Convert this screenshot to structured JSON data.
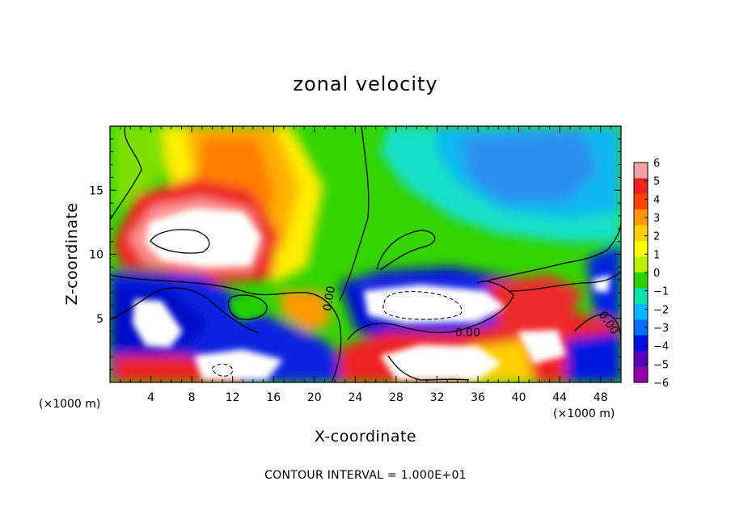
{
  "chart_data": {
    "type": "heatmap",
    "title": "zonal velocity",
    "xlabel": "X-coordinate",
    "ylabel": "Z-coordinate",
    "x_unit": "(×1000 m)",
    "x_unit_right": "(×1000 m)",
    "xlim": [
      0,
      50
    ],
    "ylim": [
      0,
      20
    ],
    "x_ticks": [
      4,
      8,
      12,
      16,
      20,
      24,
      28,
      32,
      36,
      40,
      44,
      48
    ],
    "y_ticks": [
      5,
      10,
      15
    ],
    "colorbar": {
      "min": -6,
      "max": 6,
      "ticks": [
        6,
        5,
        4,
        3,
        2,
        1,
        0,
        -1,
        -2,
        -3,
        -4,
        -5,
        -6
      ],
      "colors": [
        "#f3a0a0",
        "#ee2222",
        "#ff4500",
        "#ff9900",
        "#ffd000",
        "#ffff00",
        "#b8f000",
        "#2cd000",
        "#10e0b0",
        "#00b8ff",
        "#0070ff",
        "#0010e0",
        "#5500bb",
        "#9000a8"
      ]
    },
    "contour_labels": [
      {
        "text": "0.00",
        "x": 21.8,
        "y": 6.5,
        "rotate": -80
      },
      {
        "text": "0.00",
        "x": 35.0,
        "y": 3.6,
        "rotate": 0
      },
      {
        "text": "0.00",
        "x": 48.5,
        "y": 4.5,
        "rotate": 55
      }
    ],
    "footer": "CONTOUR INTERVAL = 1.000E+01"
  }
}
